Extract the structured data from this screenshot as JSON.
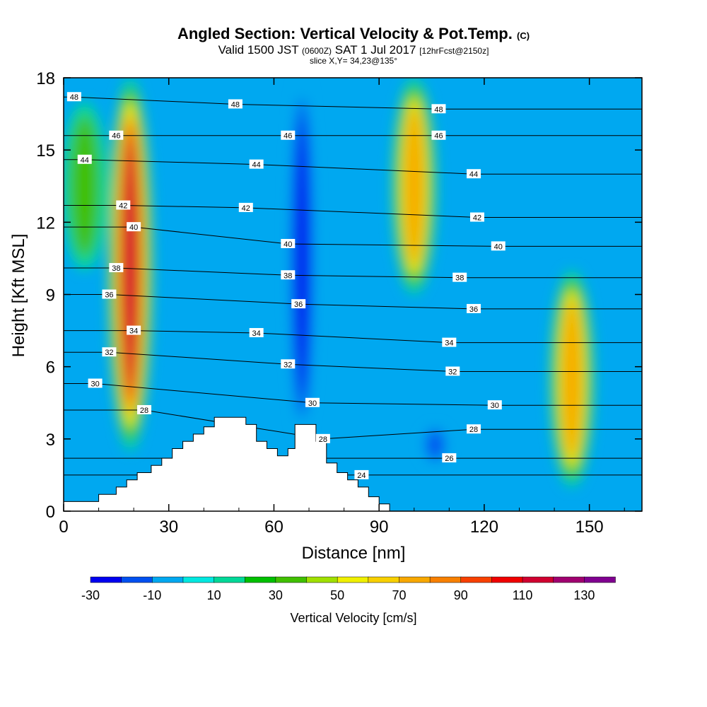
{
  "header": {
    "title": "Angled Section: Vertical Velocity & Pot.Temp.",
    "title_mark": "(C)",
    "subtitle_prefix": "Valid 1500 JST",
    "subtitle_zone": "(0600Z)",
    "subtitle_date": "SAT 1 Jul 2017",
    "subtitle_fcst": "[12hrFcst@2150z]",
    "slice": "slice X,Y= 34,23@135°"
  },
  "chart_data": {
    "type": "heatmap",
    "xlabel": "Distance [nm]",
    "ylabel": "Height [Kft MSL]",
    "xlim": [
      0,
      165
    ],
    "ylim": [
      0,
      18
    ],
    "x_ticks": [
      0,
      30,
      60,
      90,
      120,
      150
    ],
    "y_ticks": [
      0,
      3,
      6,
      9,
      12,
      15,
      18
    ],
    "colorbar": {
      "title": "Vertical Velocity [cm/s]",
      "min": -30,
      "max": 140,
      "step": 10,
      "tick_labels": [
        "-30",
        "-10",
        "10",
        "30",
        "50",
        "70",
        "90",
        "110",
        "130"
      ],
      "colors": [
        "#0000f0",
        "#0050f0",
        "#00a8f0",
        "#00e8e0",
        "#00d898",
        "#00c000",
        "#40c000",
        "#a0e000",
        "#f0f000",
        "#f8d000",
        "#f8a800",
        "#f88000",
        "#f84000",
        "#f00000",
        "#d00030",
        "#a00070",
        "#800090"
      ]
    },
    "velocity_features": [
      {
        "x": 19,
        "y0": 2.5,
        "y1": 18,
        "peak": 115,
        "desc": "strong updraft"
      },
      {
        "x": 100,
        "y0": 9,
        "y1": 18,
        "peak": 75
      },
      {
        "x": 145,
        "y0": 1,
        "y1": 10,
        "peak": 70
      },
      {
        "x": 6,
        "y0": 10,
        "y1": 17,
        "peak": 30
      },
      {
        "x": 68,
        "y0": 3,
        "y1": 18,
        "peak": -30,
        "desc": "downdraft"
      },
      {
        "x": 106,
        "y0": 2,
        "y1": 3.5,
        "peak": -20
      }
    ],
    "isentropes": [
      {
        "value": "24",
        "label_x": 85,
        "label_y": 1.5
      },
      {
        "value": "26",
        "label_x": 110,
        "label_y": 2.2
      },
      {
        "value": "28",
        "label_x": 23,
        "label_y": 4.2
      },
      {
        "value": "28",
        "label_x": 74,
        "label_y": 3.0
      },
      {
        "value": "28",
        "label_x": 117,
        "label_y": 3.4
      },
      {
        "value": "30",
        "label_x": 9,
        "label_y": 5.3
      },
      {
        "value": "30",
        "label_x": 71,
        "label_y": 4.5
      },
      {
        "value": "30",
        "label_x": 123,
        "label_y": 4.4
      },
      {
        "value": "32",
        "label_x": 13,
        "label_y": 6.6
      },
      {
        "value": "32",
        "label_x": 64,
        "label_y": 6.1
      },
      {
        "value": "32",
        "label_x": 111,
        "label_y": 5.8
      },
      {
        "value": "34",
        "label_x": 20,
        "label_y": 7.5
      },
      {
        "value": "34",
        "label_x": 55,
        "label_y": 7.4
      },
      {
        "value": "34",
        "label_x": 110,
        "label_y": 7.0
      },
      {
        "value": "36",
        "label_x": 13,
        "label_y": 9.0
      },
      {
        "value": "36",
        "label_x": 67,
        "label_y": 8.6
      },
      {
        "value": "36",
        "label_x": 117,
        "label_y": 8.4
      },
      {
        "value": "38",
        "label_x": 15,
        "label_y": 10.1
      },
      {
        "value": "38",
        "label_x": 64,
        "label_y": 9.8
      },
      {
        "value": "38",
        "label_x": 113,
        "label_y": 9.7
      },
      {
        "value": "40",
        "label_x": 20,
        "label_y": 11.8
      },
      {
        "value": "40",
        "label_x": 64,
        "label_y": 11.1
      },
      {
        "value": "40",
        "label_x": 124,
        "label_y": 11.0
      },
      {
        "value": "42",
        "label_x": 17,
        "label_y": 12.7
      },
      {
        "value": "42",
        "label_x": 52,
        "label_y": 12.6
      },
      {
        "value": "42",
        "label_x": 118,
        "label_y": 12.2
      },
      {
        "value": "44",
        "label_x": 6,
        "label_y": 14.6
      },
      {
        "value": "44",
        "label_x": 55,
        "label_y": 14.4
      },
      {
        "value": "44",
        "label_x": 117,
        "label_y": 14.0
      },
      {
        "value": "46",
        "label_x": 15,
        "label_y": 15.6
      },
      {
        "value": "46",
        "label_x": 64,
        "label_y": 15.6
      },
      {
        "value": "46",
        "label_x": 107,
        "label_y": 15.6
      },
      {
        "value": "48",
        "label_x": 3,
        "label_y": 17.2
      },
      {
        "value": "48",
        "label_x": 49,
        "label_y": 16.9
      },
      {
        "value": "48",
        "label_x": 107,
        "label_y": 16.7
      }
    ],
    "terrain": [
      [
        0,
        0.4
      ],
      [
        10,
        0.4
      ],
      [
        10,
        0.7
      ],
      [
        15,
        0.7
      ],
      [
        15,
        1.0
      ],
      [
        18,
        1.0
      ],
      [
        18,
        1.3
      ],
      [
        21,
        1.3
      ],
      [
        21,
        1.6
      ],
      [
        25,
        1.6
      ],
      [
        25,
        1.9
      ],
      [
        28,
        1.9
      ],
      [
        28,
        2.2
      ],
      [
        31,
        2.2
      ],
      [
        31,
        2.6
      ],
      [
        34,
        2.6
      ],
      [
        34,
        2.9
      ],
      [
        37,
        2.9
      ],
      [
        37,
        3.2
      ],
      [
        40,
        3.2
      ],
      [
        40,
        3.5
      ],
      [
        43,
        3.5
      ],
      [
        43,
        3.9
      ],
      [
        52,
        3.9
      ],
      [
        52,
        3.6
      ],
      [
        55,
        3.6
      ],
      [
        55,
        2.9
      ],
      [
        58,
        2.9
      ],
      [
        58,
        2.6
      ],
      [
        61,
        2.6
      ],
      [
        61,
        2.3
      ],
      [
        64,
        2.3
      ],
      [
        64,
        2.6
      ],
      [
        66,
        2.6
      ],
      [
        66,
        3.6
      ],
      [
        72,
        3.6
      ],
      [
        72,
        2.9
      ],
      [
        75,
        2.9
      ],
      [
        75,
        2.0
      ],
      [
        78,
        2.0
      ],
      [
        78,
        1.6
      ],
      [
        81,
        1.6
      ],
      [
        81,
        1.3
      ],
      [
        84,
        1.3
      ],
      [
        84,
        1.0
      ],
      [
        87,
        1.0
      ],
      [
        87,
        0.6
      ],
      [
        90,
        0.6
      ],
      [
        90,
        0.3
      ],
      [
        93,
        0.3
      ],
      [
        93,
        0
      ]
    ]
  }
}
